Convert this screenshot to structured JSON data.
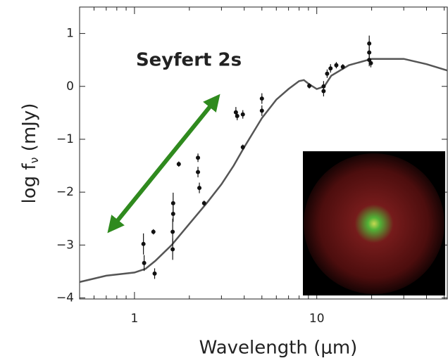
{
  "chart_data": {
    "type": "scatter",
    "xscale": "log",
    "xlim": [
      0.5,
      52
    ],
    "xticks": [
      1,
      10
    ],
    "xminorticks": [
      0.6,
      0.7,
      0.8,
      0.9,
      2,
      3,
      4,
      5,
      6,
      7,
      8,
      9,
      20,
      30,
      40,
      50
    ],
    "ylim": [
      -4.02,
      1.5
    ],
    "yticks": [
      {
        "value": -4,
        "label": "−4"
      },
      {
        "value": -3,
        "label": "−3"
      },
      {
        "value": -2,
        "label": "−2"
      },
      {
        "value": -1,
        "label": "−1"
      },
      0,
      1
    ],
    "xlabel": "Wavelength (μm)",
    "ylabel": {
      "main": "log f",
      "sub": "ν",
      "unit": "(mJy)"
    },
    "annotation": "Seyfert 2s",
    "annotation_color": "#2f8a1e",
    "series": [
      {
        "kind": "line",
        "color": "#555555",
        "x": [
          0.5,
          0.7,
          1.0,
          1.15,
          1.3,
          1.6,
          2.0,
          2.5,
          3.0,
          3.5,
          4.0,
          5.0,
          6.0,
          7.0,
          8.0,
          8.5,
          9.0,
          10.0,
          11.0,
          12.0,
          15.0,
          20.0,
          30.0,
          40.0,
          52.0
        ],
        "values": [
          -3.7,
          -3.58,
          -3.52,
          -3.45,
          -3.3,
          -3.0,
          -2.6,
          -2.2,
          -1.85,
          -1.5,
          -1.15,
          -0.6,
          -0.25,
          -0.05,
          0.1,
          0.12,
          0.05,
          -0.05,
          0.0,
          0.2,
          0.4,
          0.52,
          0.52,
          0.42,
          0.3
        ]
      },
      {
        "kind": "points",
        "color": "#111111",
        "x": [
          1.12,
          1.13,
          1.27,
          1.29,
          1.63,
          1.63,
          1.62,
          1.62,
          1.75,
          2.23,
          2.23,
          2.27,
          2.41,
          3.6,
          3.66,
          3.93,
          3.93,
          5.0,
          5.0,
          9.1,
          10.9,
          10.9,
          11.4,
          11.9,
          12.8,
          13.9,
          19.4,
          19.4,
          19.4,
          19.8
        ],
        "values": [
          -2.98,
          -3.34,
          -2.75,
          -3.54,
          -2.21,
          -2.41,
          -2.75,
          -3.08,
          -1.47,
          -1.35,
          -1.62,
          -1.92,
          -2.21,
          -0.49,
          -0.56,
          -0.53,
          -1.15,
          -0.23,
          -0.46,
          0.01,
          0.0,
          -0.09,
          0.24,
          0.34,
          0.4,
          0.37,
          0.81,
          0.64,
          0.5,
          0.44
        ],
        "errors": [
          0.2,
          0.15,
          0.05,
          0.1,
          0.2,
          0.15,
          0.25,
          0.2,
          0.05,
          0.08,
          0.1,
          0.1,
          0.05,
          0.1,
          0.08,
          0.08,
          0.05,
          0.1,
          0.1,
          0.05,
          0.1,
          0.1,
          0.08,
          0.08,
          0.06,
          0.05,
          0.15,
          0.12,
          0.12,
          0.08
        ]
      }
    ]
  }
}
